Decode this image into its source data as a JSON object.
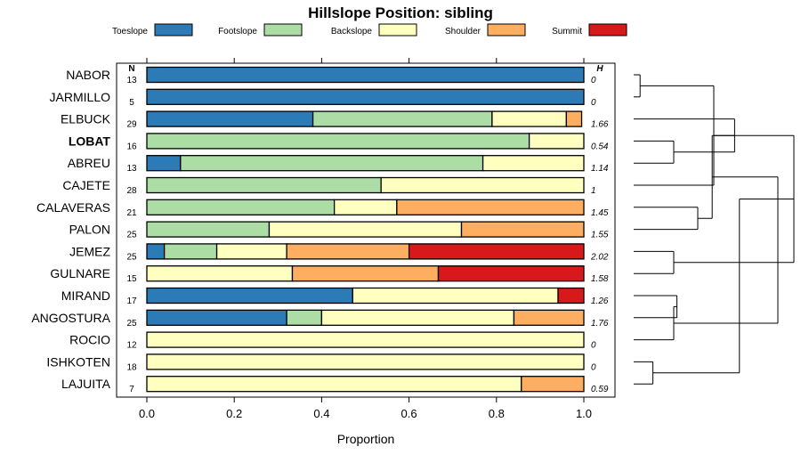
{
  "chart_data": {
    "type": "stacked-horizontal-bar",
    "title": "Hillslope Position: sibling",
    "xlabel": "Proportion",
    "xlim": [
      0,
      1
    ],
    "ticks": [
      "0.0",
      "0.2",
      "0.4",
      "0.6",
      "0.8",
      "1.0"
    ],
    "tick_values": [
      0,
      0.2,
      0.4,
      0.6,
      0.8,
      1.0
    ],
    "n_header": "N",
    "h_header": "H",
    "categories": [
      {
        "name": "Toeslope",
        "color": "#2c7bb6"
      },
      {
        "name": "Footslope",
        "color": "#abdda4"
      },
      {
        "name": "Backslope",
        "color": "#ffffbf"
      },
      {
        "name": "Shoulder",
        "color": "#fdae61"
      },
      {
        "name": "Summit",
        "color": "#d7191c"
      }
    ],
    "rows": [
      {
        "label": "NABOR",
        "bold": false,
        "n": "13",
        "h": "0",
        "values": [
          1.0,
          0,
          0,
          0,
          0
        ]
      },
      {
        "label": "JARMILLO",
        "bold": false,
        "n": "5",
        "h": "0",
        "values": [
          1.0,
          0,
          0,
          0,
          0
        ]
      },
      {
        "label": "ELBUCK",
        "bold": false,
        "n": "29",
        "h": "1.66",
        "values": [
          0.38,
          0.41,
          0.17,
          0.035,
          0
        ]
      },
      {
        "label": "LOBAT",
        "bold": true,
        "n": "16",
        "h": "0.54",
        "values": [
          0,
          0.875,
          0.125,
          0,
          0
        ]
      },
      {
        "label": "ABREU",
        "bold": false,
        "n": "13",
        "h": "1.14",
        "values": [
          0.077,
          0.692,
          0.231,
          0,
          0
        ]
      },
      {
        "label": "CAJETE",
        "bold": false,
        "n": "28",
        "h": "1",
        "values": [
          0,
          0.536,
          0.464,
          0,
          0
        ]
      },
      {
        "label": "CALAVERAS",
        "bold": false,
        "n": "21",
        "h": "1.45",
        "values": [
          0,
          0.429,
          0.143,
          0.428,
          0
        ]
      },
      {
        "label": "PALON",
        "bold": false,
        "n": "25",
        "h": "1.55",
        "values": [
          0,
          0.28,
          0.44,
          0.28,
          0
        ]
      },
      {
        "label": "JEMEZ",
        "bold": false,
        "n": "25",
        "h": "2.02",
        "values": [
          0.04,
          0.12,
          0.16,
          0.28,
          0.4
        ]
      },
      {
        "label": "GULNARE",
        "bold": false,
        "n": "15",
        "h": "1.58",
        "values": [
          0,
          0,
          0.333,
          0.334,
          0.333
        ]
      },
      {
        "label": "MIRAND",
        "bold": false,
        "n": "17",
        "h": "1.26",
        "values": [
          0.471,
          0,
          0.47,
          0,
          0.059
        ]
      },
      {
        "label": "ANGOSTURA",
        "bold": false,
        "n": "25",
        "h": "1.76",
        "values": [
          0.32,
          0.08,
          0.44,
          0.16,
          0
        ]
      },
      {
        "label": "ROCIO",
        "bold": false,
        "n": "12",
        "h": "0",
        "values": [
          0,
          0,
          1.0,
          0,
          0
        ]
      },
      {
        "label": "ISHKOTEN",
        "bold": false,
        "n": "18",
        "h": "0",
        "values": [
          0,
          0,
          1.0,
          0,
          0
        ]
      },
      {
        "label": "LAJUITA",
        "bold": false,
        "n": "7",
        "h": "0.59",
        "values": [
          0,
          0,
          0.857,
          0.143,
          0
        ]
      }
    ],
    "dendrogram_merges": [
      [
        0,
        1
      ],
      [
        3,
        4
      ],
      [
        15,
        5
      ],
      [
        16,
        2
      ],
      [
        6,
        7
      ],
      [
        8,
        9
      ],
      [
        19,
        18
      ],
      [
        17,
        20
      ],
      [
        10,
        11
      ],
      [
        13,
        14
      ],
      [
        23,
        12
      ],
      [
        22,
        24
      ],
      [
        21,
        25
      ]
    ],
    "dendrogram_heights": [
      0.04,
      0.25,
      0.5,
      0.63,
      0.4,
      0.25,
      0.49,
      1.0,
      0.27,
      0.12,
      0.25,
      0.66,
      0.9
    ]
  }
}
